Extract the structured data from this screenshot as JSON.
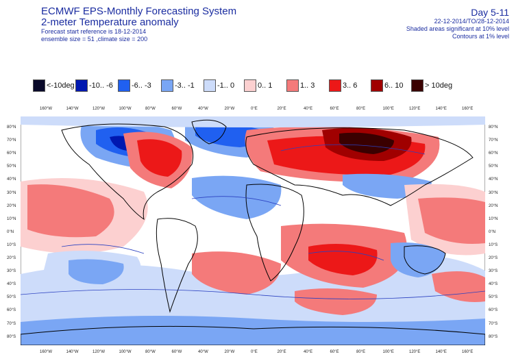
{
  "header": {
    "title": "ECMWF EPS-Monthly Forecasting System",
    "subtitle": "2-meter Temperature anomaly",
    "forecast_ref": "Forecast start reference is 18-12-2014",
    "ensemble": "ensemble size = 51 ,climate size = 200",
    "day": "Day 5-11",
    "period": "22-12-2014/TO/28-12-2014",
    "shaded_note": "Shaded areas significant at 10% level",
    "contour_note": "Contours at 1% level"
  },
  "legend": [
    {
      "label": "<-10deg",
      "color": "#0a0a2a"
    },
    {
      "label": "-10.. -6",
      "color": "#0018b0"
    },
    {
      "label": "-6.. -3",
      "color": "#2060f0"
    },
    {
      "label": "-3.. -1",
      "color": "#7aa6f4"
    },
    {
      "label": "-1.. 0",
      "color": "#cddcfa"
    },
    {
      "label": "0.. 1",
      "color": "#fcd0d0"
    },
    {
      "label": "1.. 3",
      "color": "#f47a7a"
    },
    {
      "label": "3.. 6",
      "color": "#ec1818"
    },
    {
      "label": "6.. 10",
      "color": "#a00000"
    },
    {
      "label": "> 10deg",
      "color": "#3a0000"
    }
  ],
  "axes": {
    "lon_labels": [
      "160°W",
      "140°W",
      "120°W",
      "100°W",
      "80°W",
      "60°W",
      "40°W",
      "20°W",
      "0°E",
      "20°E",
      "40°E",
      "60°E",
      "80°E",
      "100°E",
      "120°E",
      "140°E",
      "160°E"
    ],
    "lat_labels": [
      "80°N",
      "70°N",
      "60°N",
      "50°N",
      "40°N",
      "30°N",
      "20°N",
      "10°N",
      "0°N",
      "10°S",
      "20°S",
      "30°S",
      "40°S",
      "50°S",
      "60°S",
      "70°S",
      "80°S"
    ]
  },
  "map": {
    "colors": {
      "land_outline": "#000000",
      "contour": "#2a40c0"
    }
  }
}
